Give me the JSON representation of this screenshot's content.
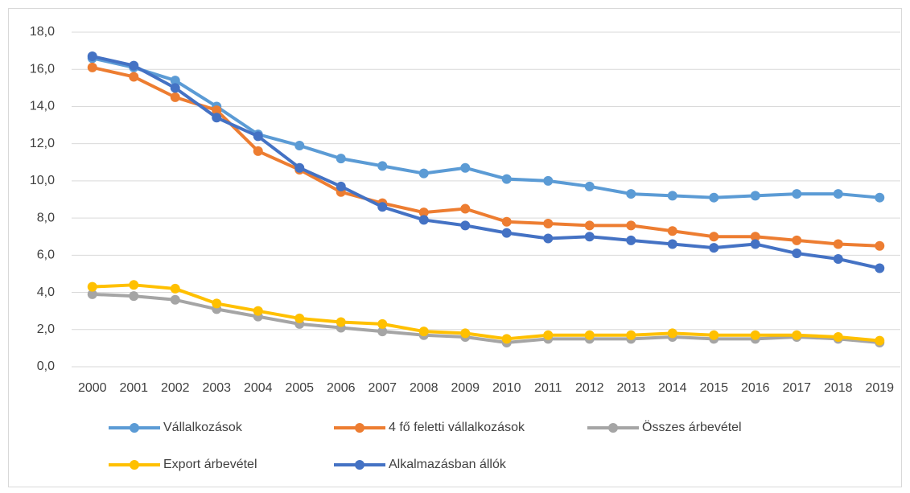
{
  "chart_data": {
    "type": "line",
    "categories": [
      "2000",
      "2001",
      "2002",
      "2003",
      "2004",
      "2005",
      "2006",
      "2007",
      "2008",
      "2009",
      "2010",
      "2011",
      "2012",
      "2013",
      "2014",
      "2015",
      "2016",
      "2017",
      "2018",
      "2019"
    ],
    "series": [
      {
        "name": "Vállalkozások",
        "color": "#5B9BD5",
        "values": [
          16.6,
          16.1,
          15.4,
          14.0,
          12.5,
          11.9,
          11.2,
          10.8,
          10.4,
          10.7,
          10.1,
          10.0,
          9.7,
          9.3,
          9.2,
          9.1,
          9.2,
          9.3,
          9.3,
          9.1
        ]
      },
      {
        "name": "4 fő feletti vállalkozások",
        "color": "#ED7D31",
        "values": [
          16.1,
          15.6,
          14.5,
          13.8,
          11.6,
          10.6,
          9.4,
          8.8,
          8.3,
          8.5,
          7.8,
          7.7,
          7.6,
          7.6,
          7.3,
          7.0,
          7.0,
          6.8,
          6.6,
          6.5
        ]
      },
      {
        "name": "Összes árbevétel",
        "color": "#A5A5A5",
        "values": [
          3.9,
          3.8,
          3.6,
          3.1,
          2.7,
          2.3,
          2.1,
          1.9,
          1.7,
          1.6,
          1.3,
          1.5,
          1.5,
          1.5,
          1.6,
          1.5,
          1.5,
          1.6,
          1.5,
          1.3
        ]
      },
      {
        "name": "Export árbevétel",
        "color": "#FFC000",
        "values": [
          4.3,
          4.4,
          4.2,
          3.4,
          3.0,
          2.6,
          2.4,
          2.3,
          1.9,
          1.8,
          1.5,
          1.7,
          1.7,
          1.7,
          1.8,
          1.7,
          1.7,
          1.7,
          1.6,
          1.4
        ]
      },
      {
        "name": "Alkalmazásban állók",
        "color": "#4472C4",
        "values": [
          16.7,
          16.2,
          15.0,
          13.4,
          12.4,
          10.7,
          9.7,
          8.6,
          7.9,
          7.6,
          7.2,
          6.9,
          7.0,
          6.8,
          6.6,
          6.4,
          6.6,
          6.1,
          5.8,
          5.3
        ]
      }
    ],
    "ylim": [
      0,
      18
    ],
    "yticks": [
      {
        "value": 0,
        "label": "0,0"
      },
      {
        "value": 2,
        "label": "2,0"
      },
      {
        "value": 4,
        "label": "4,0"
      },
      {
        "value": 6,
        "label": "6,0"
      },
      {
        "value": 8,
        "label": "8,0"
      },
      {
        "value": 10,
        "label": "10,0"
      },
      {
        "value": 12,
        "label": "12,0"
      },
      {
        "value": 14,
        "label": "14,0"
      },
      {
        "value": 16,
        "label": "16,0"
      },
      {
        "value": 18,
        "label": "18,0"
      }
    ],
    "grid": true,
    "legend": "bottom"
  }
}
